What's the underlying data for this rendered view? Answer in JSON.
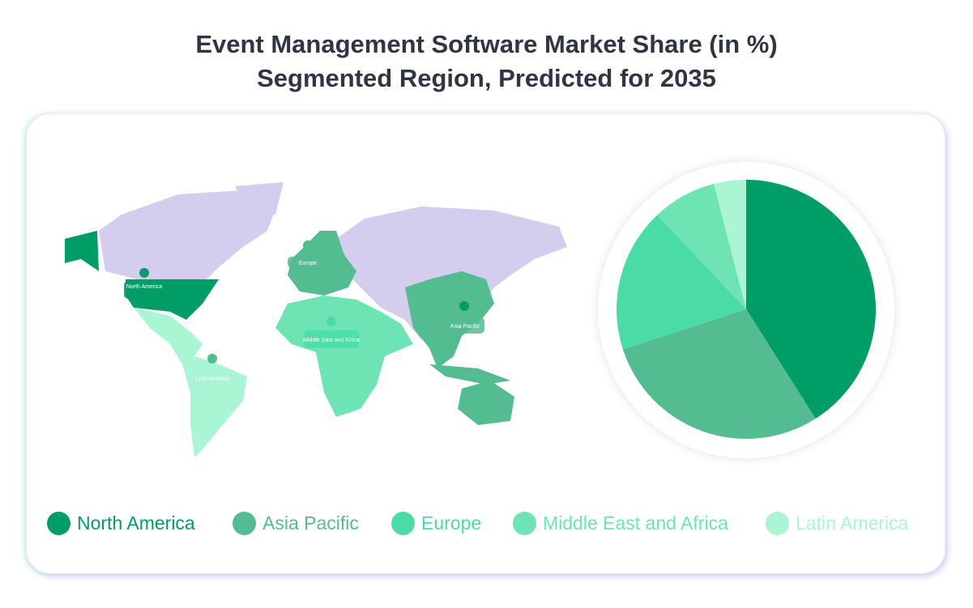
{
  "chart_data": {
    "type": "pie",
    "title": [
      "Event Management Software Market Share (in %)",
      "Segmented Region, Predicted for 2035"
    ],
    "categories": [
      "North America",
      "Asia Pacific",
      "Europe",
      "Middle East and Africa",
      "Latin America"
    ],
    "values": [
      41,
      29,
      18,
      8,
      4
    ],
    "colors": [
      "#009E67",
      "#54BC91",
      "#4BDCA5",
      "#6EE3B4",
      "#AAF5D3"
    ],
    "legend_position": "bottom",
    "map_base_color": "#D4CDEE"
  }
}
